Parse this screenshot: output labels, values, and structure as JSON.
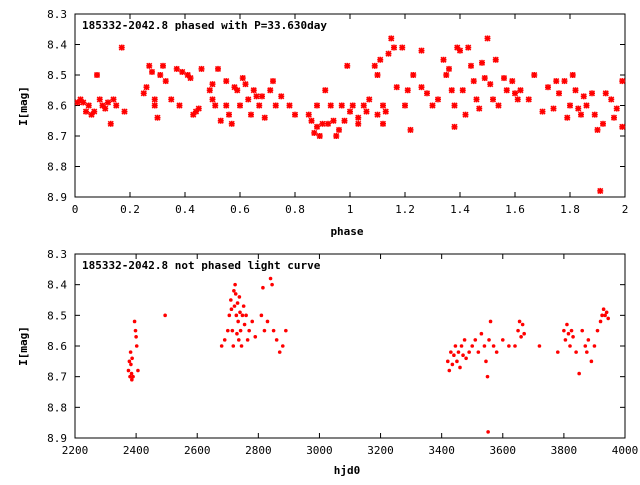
{
  "colors": {
    "points": "#ff0000",
    "frame": "#000000",
    "background": "#ffffff"
  },
  "chart_data": [
    {
      "type": "scatter",
      "title": "185332-2042.8 phased with P=33.630day",
      "xlabel": "phase",
      "ylabel": "I[mag]",
      "xlim": [
        0,
        2
      ],
      "ylim": [
        8.3,
        8.9
      ],
      "y_inverted": true,
      "xticks": [
        "0",
        "0.2",
        "0.4",
        "0.6",
        "0.8",
        "1",
        "1.2",
        "1.4",
        "1.6",
        "1.8",
        "2"
      ],
      "yticks": [
        "8.3",
        "8.4",
        "8.5",
        "8.6",
        "8.7",
        "8.8",
        "8.9"
      ],
      "grid": false,
      "points": [
        [
          0.01,
          8.59
        ],
        [
          0.02,
          8.58
        ],
        [
          0.03,
          8.59
        ],
        [
          0.04,
          8.62
        ],
        [
          0.05,
          8.6
        ],
        [
          0.06,
          8.63
        ],
        [
          0.07,
          8.62
        ],
        [
          0.08,
          8.5
        ],
        [
          0.09,
          8.58
        ],
        [
          0.1,
          8.6
        ],
        [
          0.11,
          8.61
        ],
        [
          0.12,
          8.59
        ],
        [
          0.13,
          8.66
        ],
        [
          0.14,
          8.58
        ],
        [
          0.15,
          8.6
        ],
        [
          0.17,
          8.41
        ],
        [
          0.18,
          8.62
        ],
        [
          0.25,
          8.56
        ],
        [
          0.26,
          8.54
        ],
        [
          0.27,
          8.47
        ],
        [
          0.28,
          8.49
        ],
        [
          0.29,
          8.6
        ],
        [
          0.29,
          8.58
        ],
        [
          0.3,
          8.64
        ],
        [
          0.31,
          8.5
        ],
        [
          0.32,
          8.47
        ],
        [
          0.33,
          8.52
        ],
        [
          0.35,
          8.58
        ],
        [
          0.37,
          8.48
        ],
        [
          0.38,
          8.6
        ],
        [
          0.39,
          8.49
        ],
        [
          0.41,
          8.5
        ],
        [
          0.42,
          8.51
        ],
        [
          0.43,
          8.63
        ],
        [
          0.44,
          8.62
        ],
        [
          0.45,
          8.61
        ],
        [
          0.46,
          8.48
        ],
        [
          0.49,
          8.55
        ],
        [
          0.5,
          8.53
        ],
        [
          0.5,
          8.58
        ],
        [
          0.51,
          8.6
        ],
        [
          0.52,
          8.48
        ],
        [
          0.53,
          8.65
        ],
        [
          0.55,
          8.52
        ],
        [
          0.55,
          8.6
        ],
        [
          0.56,
          8.63
        ],
        [
          0.57,
          8.66
        ],
        [
          0.58,
          8.54
        ],
        [
          0.59,
          8.55
        ],
        [
          0.6,
          8.6
        ],
        [
          0.61,
          8.51
        ],
        [
          0.62,
          8.53
        ],
        [
          0.63,
          8.58
        ],
        [
          0.64,
          8.63
        ],
        [
          0.65,
          8.55
        ],
        [
          0.66,
          8.57
        ],
        [
          0.67,
          8.6
        ],
        [
          0.68,
          8.57
        ],
        [
          0.69,
          8.64
        ],
        [
          0.71,
          8.55
        ],
        [
          0.72,
          8.52
        ],
        [
          0.73,
          8.6
        ],
        [
          0.75,
          8.57
        ],
        [
          0.78,
          8.6
        ],
        [
          0.8,
          8.63
        ],
        [
          0.85,
          8.63
        ],
        [
          0.86,
          8.65
        ],
        [
          0.87,
          8.69
        ],
        [
          0.88,
          8.67
        ],
        [
          0.88,
          8.6
        ],
        [
          0.89,
          8.7
        ],
        [
          0.9,
          8.66
        ],
        [
          0.91,
          8.55
        ],
        [
          0.92,
          8.66
        ],
        [
          0.93,
          8.6
        ],
        [
          0.94,
          8.65
        ],
        [
          0.95,
          8.7
        ],
        [
          0.96,
          8.68
        ],
        [
          0.97,
          8.6
        ],
        [
          0.98,
          8.65
        ],
        [
          0.99,
          8.47
        ],
        [
          1.0,
          8.62
        ],
        [
          1.01,
          8.6
        ],
        [
          1.03,
          8.64
        ],
        [
          1.03,
          8.66
        ],
        [
          1.05,
          8.6
        ],
        [
          1.06,
          8.62
        ],
        [
          1.07,
          8.58
        ],
        [
          1.09,
          8.47
        ],
        [
          1.1,
          8.5
        ],
        [
          1.1,
          8.63
        ],
        [
          1.11,
          8.45
        ],
        [
          1.12,
          8.6
        ],
        [
          1.12,
          8.66
        ],
        [
          1.13,
          8.62
        ],
        [
          1.14,
          8.43
        ],
        [
          1.15,
          8.38
        ],
        [
          1.16,
          8.41
        ],
        [
          1.17,
          8.54
        ],
        [
          1.19,
          8.41
        ],
        [
          1.2,
          8.6
        ],
        [
          1.21,
          8.55
        ],
        [
          1.22,
          8.68
        ],
        [
          1.23,
          8.5
        ],
        [
          1.26,
          8.54
        ],
        [
          1.26,
          8.42
        ],
        [
          1.28,
          8.56
        ],
        [
          1.3,
          8.6
        ],
        [
          1.32,
          8.58
        ],
        [
          1.34,
          8.45
        ],
        [
          1.35,
          8.5
        ],
        [
          1.36,
          8.48
        ],
        [
          1.37,
          8.55
        ],
        [
          1.38,
          8.6
        ],
        [
          1.38,
          8.67
        ],
        [
          1.39,
          8.41
        ],
        [
          1.4,
          8.42
        ],
        [
          1.41,
          8.55
        ],
        [
          1.42,
          8.63
        ],
        [
          1.43,
          8.41
        ],
        [
          1.44,
          8.47
        ],
        [
          1.45,
          8.52
        ],
        [
          1.46,
          8.58
        ],
        [
          1.47,
          8.61
        ],
        [
          1.48,
          8.46
        ],
        [
          1.49,
          8.51
        ],
        [
          1.5,
          8.38
        ],
        [
          1.51,
          8.53
        ],
        [
          1.52,
          8.58
        ],
        [
          1.53,
          8.45
        ],
        [
          1.54,
          8.6
        ],
        [
          1.56,
          8.51
        ],
        [
          1.57,
          8.55
        ],
        [
          1.59,
          8.52
        ],
        [
          1.6,
          8.56
        ],
        [
          1.61,
          8.58
        ],
        [
          1.62,
          8.55
        ],
        [
          1.65,
          8.58
        ],
        [
          1.67,
          8.5
        ],
        [
          1.7,
          8.62
        ],
        [
          1.72,
          8.54
        ],
        [
          1.74,
          8.61
        ],
        [
          1.75,
          8.52
        ],
        [
          1.76,
          8.56
        ],
        [
          1.78,
          8.52
        ],
        [
          1.79,
          8.64
        ],
        [
          1.8,
          8.6
        ],
        [
          1.81,
          8.5
        ],
        [
          1.82,
          8.55
        ],
        [
          1.83,
          8.61
        ],
        [
          1.84,
          8.63
        ],
        [
          1.85,
          8.57
        ],
        [
          1.86,
          8.6
        ],
        [
          1.88,
          8.56
        ],
        [
          1.89,
          8.63
        ],
        [
          1.9,
          8.68
        ],
        [
          1.91,
          8.88
        ],
        [
          1.92,
          8.66
        ],
        [
          1.93,
          8.56
        ],
        [
          1.95,
          8.58
        ],
        [
          1.96,
          8.64
        ],
        [
          1.97,
          8.61
        ],
        [
          1.99,
          8.67
        ],
        [
          1.99,
          8.52
        ]
      ]
    },
    {
      "type": "scatter",
      "title": "185332-2042.8 not phased light curve",
      "xlabel": "hjd0",
      "ylabel": "I[mag]",
      "xlim": [
        2200,
        4000
      ],
      "ylim": [
        8.3,
        8.9
      ],
      "y_inverted": true,
      "xticks": [
        "2200",
        "2400",
        "2600",
        "2800",
        "3000",
        "3200",
        "3400",
        "3600",
        "3800",
        "4000"
      ],
      "yticks": [
        "8.3",
        "8.4",
        "8.5",
        "8.6",
        "8.7",
        "8.8",
        "8.9"
      ],
      "grid": false,
      "points": [
        [
          2375,
          8.68
        ],
        [
          2378,
          8.65
        ],
        [
          2380,
          8.7
        ],
        [
          2382,
          8.62
        ],
        [
          2383,
          8.66
        ],
        [
          2385,
          8.69
        ],
        [
          2386,
          8.71
        ],
        [
          2387,
          8.64
        ],
        [
          2390,
          8.7
        ],
        [
          2395,
          8.52
        ],
        [
          2398,
          8.55
        ],
        [
          2400,
          8.57
        ],
        [
          2402,
          8.6
        ],
        [
          2406,
          8.68
        ],
        [
          2495,
          8.5
        ],
        [
          2680,
          8.6
        ],
        [
          2690,
          8.58
        ],
        [
          2700,
          8.55
        ],
        [
          2705,
          8.5
        ],
        [
          2710,
          8.45
        ],
        [
          2712,
          8.48
        ],
        [
          2715,
          8.55
        ],
        [
          2718,
          8.6
        ],
        [
          2720,
          8.42
        ],
        [
          2722,
          8.47
        ],
        [
          2724,
          8.4
        ],
        [
          2726,
          8.43
        ],
        [
          2728,
          8.5
        ],
        [
          2730,
          8.56
        ],
        [
          2732,
          8.46
        ],
        [
          2734,
          8.52
        ],
        [
          2736,
          8.58
        ],
        [
          2738,
          8.44
        ],
        [
          2740,
          8.49
        ],
        [
          2742,
          8.55
        ],
        [
          2745,
          8.6
        ],
        [
          2748,
          8.5
        ],
        [
          2752,
          8.47
        ],
        [
          2755,
          8.53
        ],
        [
          2760,
          8.5
        ],
        [
          2765,
          8.58
        ],
        [
          2770,
          8.55
        ],
        [
          2780,
          8.52
        ],
        [
          2790,
          8.57
        ],
        [
          2810,
          8.5
        ],
        [
          2815,
          8.41
        ],
        [
          2820,
          8.55
        ],
        [
          2830,
          8.52
        ],
        [
          2840,
          8.38
        ],
        [
          2845,
          8.4
        ],
        [
          2850,
          8.55
        ],
        [
          2860,
          8.58
        ],
        [
          2870,
          8.62
        ],
        [
          2880,
          8.6
        ],
        [
          2890,
          8.55
        ],
        [
          3420,
          8.65
        ],
        [
          3425,
          8.68
        ],
        [
          3430,
          8.62
        ],
        [
          3435,
          8.66
        ],
        [
          3440,
          8.63
        ],
        [
          3445,
          8.6
        ],
        [
          3450,
          8.65
        ],
        [
          3455,
          8.62
        ],
        [
          3460,
          8.67
        ],
        [
          3465,
          8.6
        ],
        [
          3470,
          8.63
        ],
        [
          3475,
          8.58
        ],
        [
          3480,
          8.64
        ],
        [
          3490,
          8.62
        ],
        [
          3500,
          8.6
        ],
        [
          3510,
          8.58
        ],
        [
          3520,
          8.62
        ],
        [
          3530,
          8.56
        ],
        [
          3540,
          8.6
        ],
        [
          3545,
          8.65
        ],
        [
          3550,
          8.7
        ],
        [
          3552,
          8.88
        ],
        [
          3555,
          8.58
        ],
        [
          3560,
          8.52
        ],
        [
          3570,
          8.6
        ],
        [
          3580,
          8.62
        ],
        [
          3600,
          8.58
        ],
        [
          3620,
          8.6
        ],
        [
          3640,
          8.6
        ],
        [
          3650,
          8.55
        ],
        [
          3655,
          8.52
        ],
        [
          3660,
          8.57
        ],
        [
          3665,
          8.53
        ],
        [
          3670,
          8.56
        ],
        [
          3720,
          8.6
        ],
        [
          3780,
          8.62
        ],
        [
          3800,
          8.55
        ],
        [
          3805,
          8.58
        ],
        [
          3810,
          8.53
        ],
        [
          3815,
          8.56
        ],
        [
          3820,
          8.6
        ],
        [
          3825,
          8.55
        ],
        [
          3830,
          8.57
        ],
        [
          3840,
          8.62
        ],
        [
          3850,
          8.69
        ],
        [
          3860,
          8.55
        ],
        [
          3870,
          8.6
        ],
        [
          3875,
          8.62
        ],
        [
          3880,
          8.58
        ],
        [
          3890,
          8.65
        ],
        [
          3900,
          8.6
        ],
        [
          3910,
          8.55
        ],
        [
          3920,
          8.52
        ],
        [
          3925,
          8.5
        ],
        [
          3930,
          8.48
        ],
        [
          3935,
          8.5
        ],
        [
          3940,
          8.49
        ],
        [
          3945,
          8.51
        ]
      ]
    }
  ]
}
